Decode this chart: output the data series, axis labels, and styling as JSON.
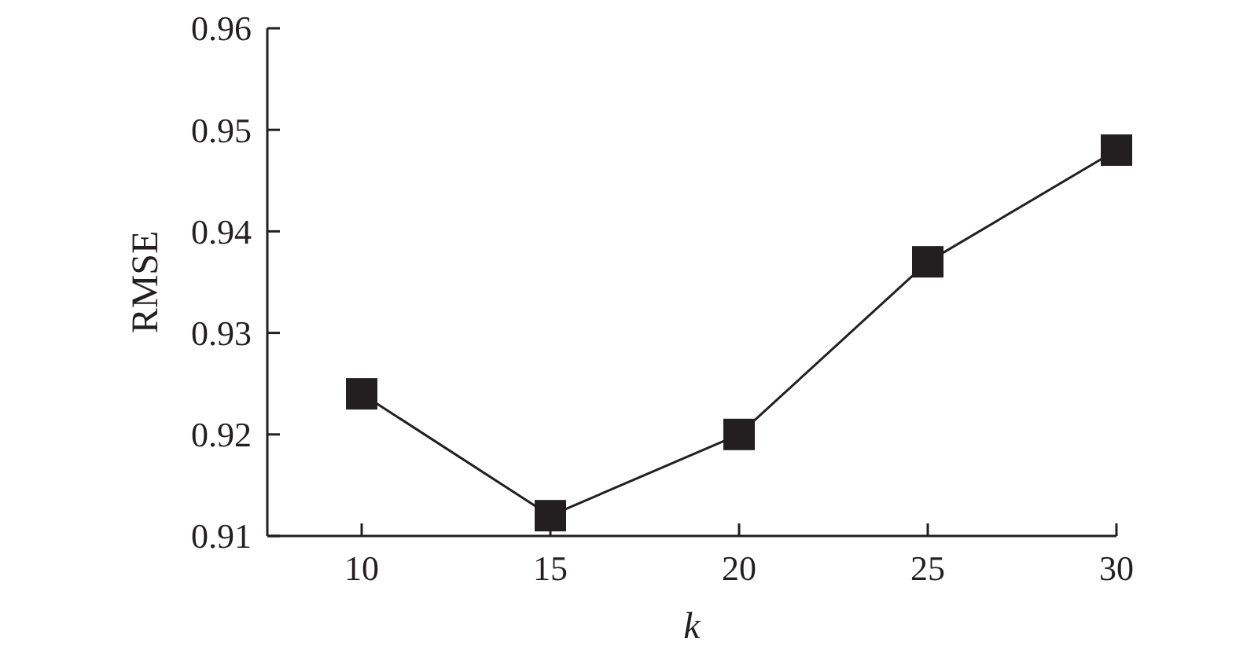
{
  "chart_data": {
    "type": "line",
    "xlabel": "k",
    "ylabel": "RMSE",
    "x": [
      10,
      15,
      20,
      25,
      30
    ],
    "series": [
      {
        "color": "#231f20",
        "values": [
          0.924,
          0.912,
          0.92,
          0.937,
          0.948
        ]
      }
    ],
    "xlim": [
      7.5,
      30
    ],
    "xticks": [
      10,
      15,
      20,
      25,
      30
    ],
    "ylim": [
      0.91,
      0.96
    ],
    "yticks": [
      0.91,
      0.92,
      0.93,
      0.94,
      0.95,
      0.96
    ],
    "marker": "square",
    "line_style": "solid"
  }
}
